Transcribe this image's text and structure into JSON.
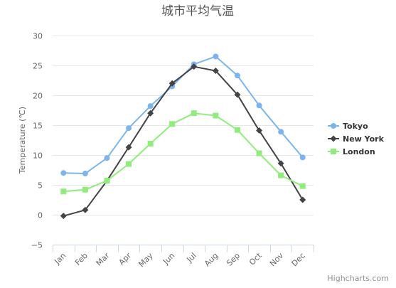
{
  "chart_data": {
    "type": "line",
    "title": "城市平均气温",
    "ylabel": "Temperature (℃)",
    "xlabel": "",
    "ylim": [
      -5,
      30
    ],
    "yticks": [
      -5,
      0,
      5,
      10,
      15,
      20,
      25,
      30
    ],
    "grid": true,
    "legend_position": "right",
    "categories": [
      "Jan",
      "Feb",
      "Mar",
      "Apr",
      "May",
      "Jun",
      "Jul",
      "Aug",
      "Sep",
      "Oct",
      "Nov",
      "Dec"
    ],
    "series": [
      {
        "name": "Tokyo",
        "color": "#7cb5ec",
        "marker": "circle",
        "values": [
          7.0,
          6.9,
          9.5,
          14.5,
          18.2,
          21.5,
          25.2,
          26.5,
          23.3,
          18.3,
          13.9,
          9.6
        ]
      },
      {
        "name": "New York",
        "color": "#434348",
        "marker": "diamond",
        "values": [
          -0.2,
          0.8,
          5.7,
          11.3,
          17.0,
          22.0,
          24.8,
          24.1,
          20.1,
          14.1,
          8.6,
          2.5
        ]
      },
      {
        "name": "London",
        "color": "#90ed7d",
        "marker": "square",
        "values": [
          3.9,
          4.2,
          5.7,
          8.5,
          11.9,
          15.2,
          17.0,
          16.6,
          14.2,
          10.3,
          6.6,
          4.8
        ]
      }
    ]
  },
  "credits": "Highcharts.com"
}
